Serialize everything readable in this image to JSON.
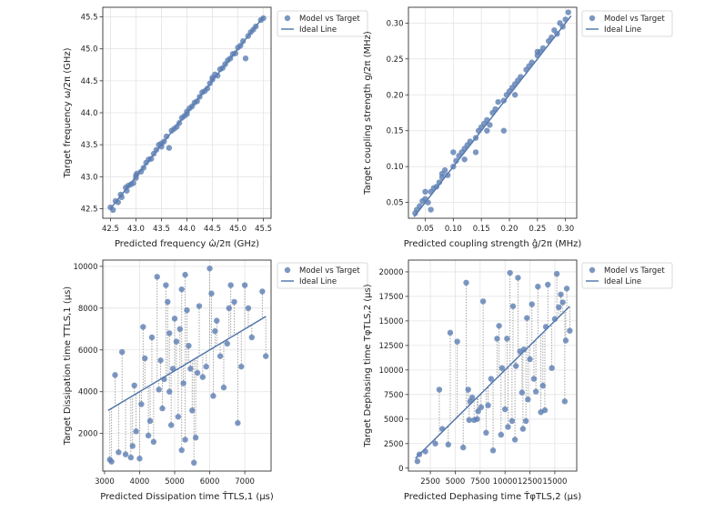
{
  "colors": {
    "point": "#5b7db1",
    "line": "#4c72a8",
    "grid": "#e4e4e4",
    "axis": "#333333",
    "residual": "#9a9a9a"
  },
  "chart_data": [
    {
      "id": "freq",
      "type": "scatter",
      "xlabel": "Predicted frequency ω̂/2π (GHz)",
      "ylabel": "Target frequency ω/2π (GHz)",
      "xlim": [
        42.35,
        45.65
      ],
      "ylim": [
        42.35,
        45.65
      ],
      "xticks": [
        42.5,
        43.0,
        43.5,
        44.0,
        44.5,
        45.0,
        45.5
      ],
      "yticks": [
        42.5,
        43.0,
        43.5,
        44.0,
        44.5,
        45.0,
        45.5
      ],
      "tick_labels_x": [
        "42.5",
        "43.0",
        "43.5",
        "44.0",
        "44.5",
        "45.0",
        "45.5"
      ],
      "tick_labels_y": [
        "42.5",
        "43.0",
        "43.5",
        "44.0",
        "44.5",
        "45.0",
        "45.5"
      ],
      "legend": {
        "position": "outside-top-right",
        "entries": [
          "Model vs Target",
          "Ideal Line"
        ]
      },
      "ideal_line": [
        [
          42.5,
          42.5
        ],
        [
          45.5,
          45.5
        ]
      ],
      "residuals": false,
      "points": [
        [
          42.5,
          42.52
        ],
        [
          42.55,
          42.48
        ],
        [
          42.6,
          42.62
        ],
        [
          42.65,
          42.6
        ],
        [
          42.7,
          42.72
        ],
        [
          42.72,
          42.68
        ],
        [
          42.8,
          42.83
        ],
        [
          42.82,
          42.78
        ],
        [
          42.85,
          42.86
        ],
        [
          42.9,
          42.88
        ],
        [
          43.0,
          42.98
        ],
        [
          43.02,
          43.05
        ],
        [
          43.1,
          43.08
        ],
        [
          43.15,
          43.14
        ],
        [
          43.2,
          43.22
        ],
        [
          43.25,
          43.27
        ],
        [
          43.3,
          43.28
        ],
        [
          43.35,
          43.36
        ],
        [
          43.4,
          43.42
        ],
        [
          43.45,
          43.5
        ],
        [
          43.5,
          43.47
        ],
        [
          43.55,
          43.55
        ],
        [
          43.6,
          43.63
        ],
        [
          43.65,
          43.45
        ],
        [
          43.7,
          43.72
        ],
        [
          43.75,
          43.75
        ],
        [
          43.8,
          43.78
        ],
        [
          43.85,
          43.84
        ],
        [
          43.9,
          43.92
        ],
        [
          43.95,
          43.95
        ],
        [
          44.0,
          43.98
        ],
        [
          44.05,
          44.07
        ],
        [
          44.1,
          44.1
        ],
        [
          44.15,
          44.16
        ],
        [
          44.2,
          44.18
        ],
        [
          44.25,
          44.25
        ],
        [
          44.3,
          44.32
        ],
        [
          44.35,
          44.34
        ],
        [
          44.4,
          44.38
        ],
        [
          44.45,
          44.46
        ],
        [
          44.5,
          44.55
        ],
        [
          44.55,
          44.6
        ],
        [
          44.6,
          44.58
        ],
        [
          44.65,
          44.68
        ],
        [
          44.7,
          44.7
        ],
        [
          44.75,
          44.76
        ],
        [
          44.8,
          44.82
        ],
        [
          44.85,
          44.85
        ],
        [
          44.9,
          44.92
        ],
        [
          44.95,
          44.93
        ],
        [
          45.0,
          45.02
        ],
        [
          45.05,
          45.05
        ],
        [
          45.1,
          45.12
        ],
        [
          45.15,
          44.85
        ],
        [
          45.2,
          45.2
        ],
        [
          45.25,
          45.26
        ],
        [
          45.3,
          45.3
        ],
        [
          45.35,
          45.35
        ],
        [
          45.45,
          45.45
        ],
        [
          45.5,
          45.48
        ],
        [
          43.0,
          43.02
        ],
        [
          43.5,
          43.52
        ],
        [
          44.0,
          44.02
        ],
        [
          44.5,
          44.52
        ],
        [
          42.95,
          42.9
        ]
      ]
    },
    {
      "id": "coupling",
      "type": "scatter",
      "xlabel": "Predicted coupling strength ĝ/2π (MHz)",
      "ylabel": "Target coupling strength g/2π (MHz)",
      "xlim": [
        0.02,
        0.32
      ],
      "ylim": [
        0.028,
        0.322
      ],
      "xticks": [
        0.05,
        0.1,
        0.15,
        0.2,
        0.25,
        0.3
      ],
      "yticks": [
        0.05,
        0.1,
        0.15,
        0.2,
        0.25,
        0.3
      ],
      "tick_labels_x": [
        "0.05",
        "0.10",
        "0.15",
        "0.20",
        "0.25",
        "0.30"
      ],
      "tick_labels_y": [
        "0.05",
        "0.10",
        "0.15",
        "0.20",
        "0.25",
        "0.30"
      ],
      "legend": {
        "position": "outside-top-right",
        "entries": [
          "Model vs Target",
          "Ideal Line"
        ]
      },
      "ideal_line": [
        [
          0.03,
          0.03
        ],
        [
          0.31,
          0.31
        ]
      ],
      "residuals": false,
      "points": [
        [
          0.032,
          0.035
        ],
        [
          0.035,
          0.04
        ],
        [
          0.04,
          0.045
        ],
        [
          0.045,
          0.052
        ],
        [
          0.05,
          0.055
        ],
        [
          0.055,
          0.05
        ],
        [
          0.06,
          0.065
        ],
        [
          0.065,
          0.07
        ],
        [
          0.07,
          0.072
        ],
        [
          0.075,
          0.078
        ],
        [
          0.08,
          0.085
        ],
        [
          0.085,
          0.095
        ],
        [
          0.09,
          0.088
        ],
        [
          0.1,
          0.1
        ],
        [
          0.105,
          0.108
        ],
        [
          0.11,
          0.115
        ],
        [
          0.115,
          0.12
        ],
        [
          0.12,
          0.125
        ],
        [
          0.125,
          0.13
        ],
        [
          0.13,
          0.135
        ],
        [
          0.14,
          0.14
        ],
        [
          0.145,
          0.15
        ],
        [
          0.15,
          0.155
        ],
        [
          0.155,
          0.16
        ],
        [
          0.16,
          0.165
        ],
        [
          0.165,
          0.158
        ],
        [
          0.17,
          0.175
        ],
        [
          0.175,
          0.18
        ],
        [
          0.18,
          0.19
        ],
        [
          0.19,
          0.192
        ],
        [
          0.195,
          0.2
        ],
        [
          0.2,
          0.205
        ],
        [
          0.205,
          0.21
        ],
        [
          0.21,
          0.215
        ],
        [
          0.215,
          0.22
        ],
        [
          0.22,
          0.225
        ],
        [
          0.23,
          0.235
        ],
        [
          0.235,
          0.24
        ],
        [
          0.24,
          0.245
        ],
        [
          0.25,
          0.255
        ],
        [
          0.255,
          0.26
        ],
        [
          0.26,
          0.265
        ],
        [
          0.27,
          0.275
        ],
        [
          0.275,
          0.28
        ],
        [
          0.28,
          0.29
        ],
        [
          0.285,
          0.285
        ],
        [
          0.29,
          0.3
        ],
        [
          0.295,
          0.295
        ],
        [
          0.3,
          0.305
        ],
        [
          0.305,
          0.315
        ],
        [
          0.06,
          0.04
        ],
        [
          0.12,
          0.11
        ],
        [
          0.19,
          0.15
        ],
        [
          0.16,
          0.15
        ],
        [
          0.21,
          0.2
        ],
        [
          0.25,
          0.26
        ],
        [
          0.1,
          0.12
        ],
        [
          0.08,
          0.09
        ],
        [
          0.14,
          0.12
        ],
        [
          0.05,
          0.065
        ]
      ]
    },
    {
      "id": "dissipation",
      "type": "scatter",
      "xlabel": "Predicted Dissipation time T̂TLS,1 (μs)",
      "ylabel": "Target Dissipation time TTLS,1 (μs)",
      "xlim": [
        2950,
        7750
      ],
      "ylim": [
        200,
        10300
      ],
      "xticks": [
        3000,
        4000,
        5000,
        6000,
        7000
      ],
      "yticks": [
        2000,
        4000,
        6000,
        8000,
        10000
      ],
      "tick_labels_x": [
        "3000",
        "4000",
        "5000",
        "6000",
        "7000"
      ],
      "tick_labels_y": [
        "2000",
        "4000",
        "6000",
        "8000",
        "10000"
      ],
      "legend": {
        "position": "outside-top-right",
        "entries": [
          "Model vs Target",
          "Ideal Line"
        ]
      },
      "ideal_line": [
        [
          3100,
          3100
        ],
        [
          7600,
          7600
        ]
      ],
      "residuals": true,
      "points": [
        [
          3150,
          750
        ],
        [
          3200,
          650
        ],
        [
          3300,
          4800
        ],
        [
          3400,
          1100
        ],
        [
          3500,
          5900
        ],
        [
          3600,
          1000
        ],
        [
          3750,
          850
        ],
        [
          3800,
          1400
        ],
        [
          3850,
          4300
        ],
        [
          3900,
          2100
        ],
        [
          4000,
          800
        ],
        [
          4050,
          3400
        ],
        [
          4100,
          7100
        ],
        [
          4150,
          5600
        ],
        [
          4250,
          1900
        ],
        [
          4300,
          2600
        ],
        [
          4350,
          6600
        ],
        [
          4400,
          1600
        ],
        [
          4500,
          9500
        ],
        [
          4550,
          4100
        ],
        [
          4600,
          5500
        ],
        [
          4650,
          3200
        ],
        [
          4700,
          4600
        ],
        [
          4750,
          9100
        ],
        [
          4800,
          8300
        ],
        [
          4850,
          4000
        ],
        [
          4900,
          2400
        ],
        [
          4950,
          5100
        ],
        [
          5000,
          7500
        ],
        [
          5050,
          6400
        ],
        [
          5100,
          2800
        ],
        [
          5150,
          7000
        ],
        [
          5200,
          8900
        ],
        [
          5250,
          4400
        ],
        [
          5300,
          9600
        ],
        [
          5300,
          1700
        ],
        [
          5350,
          7900
        ],
        [
          5400,
          6200
        ],
        [
          5450,
          5100
        ],
        [
          5500,
          3100
        ],
        [
          5550,
          600
        ],
        [
          5600,
          1800
        ],
        [
          5700,
          8100
        ],
        [
          5800,
          4700
        ],
        [
          5900,
          5200
        ],
        [
          6000,
          9900
        ],
        [
          6050,
          8700
        ],
        [
          6100,
          3800
        ],
        [
          6200,
          7400
        ],
        [
          6300,
          5700
        ],
        [
          6400,
          4200
        ],
        [
          6500,
          6300
        ],
        [
          6600,
          9100
        ],
        [
          6700,
          8300
        ],
        [
          6800,
          2500
        ],
        [
          6900,
          5200
        ],
        [
          7000,
          9100
        ],
        [
          7100,
          8000
        ],
        [
          7200,
          6600
        ],
        [
          7500,
          8800
        ],
        [
          7600,
          5700
        ],
        [
          5200,
          1200
        ],
        [
          4850,
          6800
        ],
        [
          6150,
          6900
        ],
        [
          5650,
          4900
        ],
        [
          6550,
          8000
        ]
      ]
    },
    {
      "id": "dephasing",
      "type": "scatter",
      "xlabel": "Predicted Dephasing time T̂φTLS,2 (μs)",
      "ylabel": "Target Dephasing time TφTLS,2 (μs)",
      "xlim": [
        300,
        17200
      ],
      "ylim": [
        -300,
        21200
      ],
      "xticks": [
        2500,
        5000,
        7500,
        10000,
        12500,
        15000
      ],
      "yticks": [
        0,
        2500,
        5000,
        7500,
        10000,
        12500,
        15000,
        17500,
        20000
      ],
      "tick_labels_x": [
        "2500",
        "5000",
        "7500",
        "10000",
        "12500",
        "15000"
      ],
      "tick_labels_y": [
        "0",
        "2500",
        "5000",
        "7500",
        "10000",
        "12500",
        "15000",
        "17500",
        "20000"
      ],
      "legend": {
        "position": "outside-top-right",
        "entries": [
          "Model vs Target",
          "Ideal Line"
        ]
      },
      "ideal_line": [
        [
          1000,
          1000
        ],
        [
          16500,
          16500
        ]
      ],
      "residuals": true,
      "points": [
        [
          1200,
          700
        ],
        [
          1400,
          1400
        ],
        [
          2000,
          1700
        ],
        [
          3000,
          2500
        ],
        [
          3400,
          8000
        ],
        [
          3700,
          4000
        ],
        [
          4300,
          2400
        ],
        [
          4500,
          13800
        ],
        [
          5200,
          12900
        ],
        [
          5800,
          2100
        ],
        [
          6100,
          18900
        ],
        [
          6300,
          8000
        ],
        [
          6400,
          4900
        ],
        [
          6500,
          6800
        ],
        [
          6700,
          7200
        ],
        [
          6900,
          4900
        ],
        [
          7300,
          5800
        ],
        [
          7600,
          6200
        ],
        [
          7800,
          17000
        ],
        [
          8100,
          3600
        ],
        [
          8300,
          6400
        ],
        [
          8600,
          9100
        ],
        [
          8800,
          1800
        ],
        [
          9200,
          13200
        ],
        [
          9400,
          14500
        ],
        [
          9700,
          10200
        ],
        [
          10000,
          6000
        ],
        [
          10300,
          4200
        ],
        [
          10500,
          19900
        ],
        [
          10700,
          4800
        ],
        [
          10800,
          16500
        ],
        [
          11000,
          2900
        ],
        [
          11100,
          10400
        ],
        [
          11300,
          19400
        ],
        [
          11500,
          11900
        ],
        [
          11700,
          7700
        ],
        [
          11900,
          12100
        ],
        [
          12100,
          4800
        ],
        [
          12300,
          7000
        ],
        [
          12500,
          11100
        ],
        [
          12700,
          16700
        ],
        [
          12900,
          9100
        ],
        [
          13100,
          7800
        ],
        [
          13300,
          18500
        ],
        [
          13600,
          5700
        ],
        [
          13800,
          8400
        ],
        [
          14100,
          14400
        ],
        [
          14300,
          18700
        ],
        [
          14700,
          10200
        ],
        [
          15000,
          15200
        ],
        [
          15200,
          19800
        ],
        [
          15400,
          16400
        ],
        [
          15600,
          17700
        ],
        [
          15800,
          16900
        ],
        [
          16000,
          6800
        ],
        [
          16100,
          13000
        ],
        [
          16200,
          18300
        ],
        [
          16500,
          14000
        ],
        [
          9600,
          3400
        ],
        [
          12200,
          15300
        ],
        [
          10200,
          13200
        ],
        [
          7200,
          5000
        ],
        [
          11800,
          4000
        ],
        [
          14000,
          5900
        ]
      ]
    }
  ]
}
